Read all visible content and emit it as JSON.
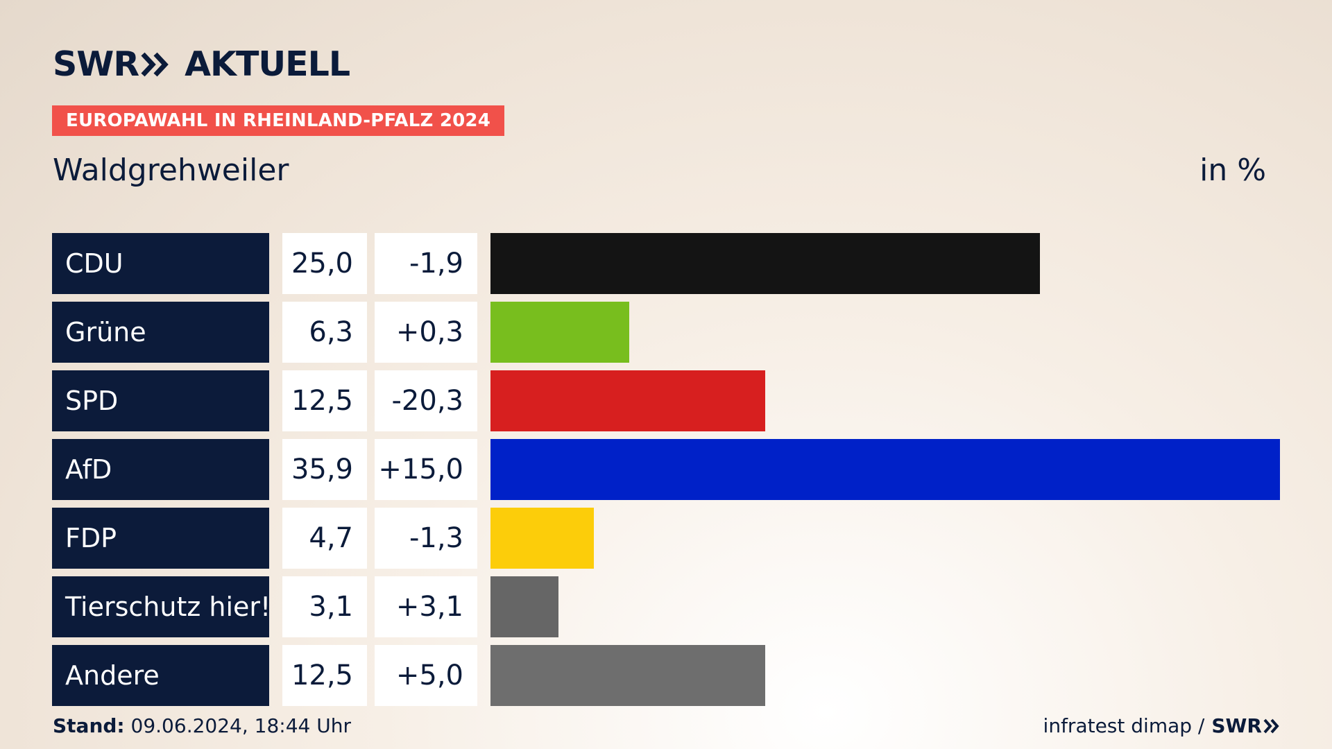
{
  "header": {
    "brand_name": "SWR",
    "brand_sub": "AKTUELL",
    "badge": "EUROPAWAHL IN RHEINLAND-PFALZ 2024",
    "region": "Waldgrehweiler",
    "unit": "in %"
  },
  "footer": {
    "stand_label": "Stand:",
    "stand_value": "09.06.2024, 18:44 Uhr",
    "source": "infratest dimap /",
    "logo": "SWR"
  },
  "chart_data": {
    "type": "bar",
    "orientation": "horizontal",
    "title": "Waldgrehweiler",
    "unit": "in %",
    "categories": [
      "CDU",
      "Grüne",
      "SPD",
      "AfD",
      "FDP",
      "Tierschutz hier!",
      "Andere"
    ],
    "values": [
      25.0,
      6.3,
      12.5,
      35.9,
      4.7,
      3.1,
      12.5
    ],
    "value_labels": [
      "25,0",
      "6,3",
      "12,5",
      "35,9",
      "4,7",
      "3,1",
      "12,5"
    ],
    "diff_labels": [
      "-1,9",
      "+0,3",
      "-20,3",
      "+15,0",
      "-1,3",
      "+3,1",
      "+5,0"
    ],
    "colors": [
      "#141414",
      "#78be1e",
      "#d71f1f",
      "#0021c8",
      "#fccd0a",
      "#666666",
      "#6e6e6e"
    ],
    "xlim": [
      0,
      35.9
    ]
  }
}
